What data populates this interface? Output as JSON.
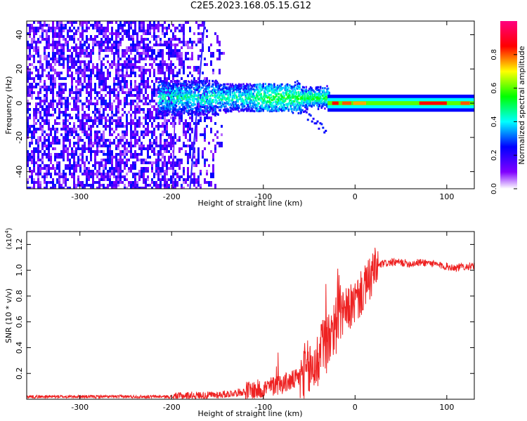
{
  "title": "C2E5.2023.168.05.15.G12",
  "chart_data": [
    {
      "type": "heatmap",
      "xlabel": "Height of straight line (km)",
      "ylabel": "Frequency (Hz)",
      "xlim": [
        -358,
        130
      ],
      "ylim": [
        -50,
        48
      ],
      "x_ticks": [
        -300,
        -200,
        -100,
        0,
        100
      ],
      "y_ticks": [
        -40,
        -20,
        0,
        20,
        40
      ],
      "grid": false,
      "colorbar": {
        "label": "Normalized spectral amplitude",
        "range": [
          0.0,
          1.0
        ],
        "ticks": [
          0.0,
          0.2,
          0.4,
          0.6,
          0.8
        ],
        "colors": [
          "#ffffff",
          "#7f00ff",
          "#0000ff",
          "#00ffff",
          "#00ff00",
          "#ffff00",
          "#ff0000",
          "#ff00aa"
        ]
      },
      "features": [
        {
          "name": "noise",
          "x_range": [
            -358,
            -160
          ],
          "freq_range": [
            -50,
            48
          ],
          "amplitude": 0.25
        },
        {
          "name": "line",
          "x_range": [
            -180,
            -165
          ],
          "freq_range": [
            -50,
            48
          ]
        },
        {
          "name": "signal",
          "x_range": [
            -215,
            -30
          ],
          "freq_center": 3,
          "amplitude": 0.45
        },
        {
          "name": "tone",
          "x_range": [
            -30,
            130
          ],
          "freq_center": 0,
          "amplitude": 0.6
        }
      ]
    },
    {
      "type": "line",
      "xlabel": "Height of straight line (km)",
      "ylabel": "SNR (10 * v/v)",
      "y_multiplier": "(x10",
      "y_multiplier_exp": "4",
      "xlim": [
        -358,
        130
      ],
      "ylim": [
        0,
        1.3
      ],
      "x_ticks": [
        -300,
        -200,
        -100,
        0,
        100
      ],
      "y_ticks": [
        0.2,
        0.4,
        0.6,
        0.8,
        1.0,
        1.2
      ],
      "color": "#ee2222",
      "grid": false,
      "series": [
        {
          "x": [
            -358,
            -300,
            -250,
            -200,
            -180,
            -160,
            -140,
            -120,
            -100,
            -90,
            -80,
            -70,
            -60,
            -50,
            -40,
            -30,
            -25,
            -20,
            -15,
            -10,
            0,
            10,
            20,
            25,
            30,
            40,
            50,
            60,
            70,
            80,
            90,
            100,
            110,
            120,
            130
          ],
          "values": [
            0.02,
            0.02,
            0.02,
            0.02,
            0.03,
            0.03,
            0.04,
            0.06,
            0.08,
            0.1,
            0.12,
            0.14,
            0.17,
            0.22,
            0.3,
            0.45,
            0.55,
            0.6,
            0.65,
            0.68,
            0.75,
            0.85,
            0.98,
            1.03,
            1.05,
            1.06,
            1.06,
            1.05,
            1.06,
            1.06,
            1.04,
            1.03,
            1.02,
            1.03,
            1.03
          ]
        }
      ]
    }
  ]
}
